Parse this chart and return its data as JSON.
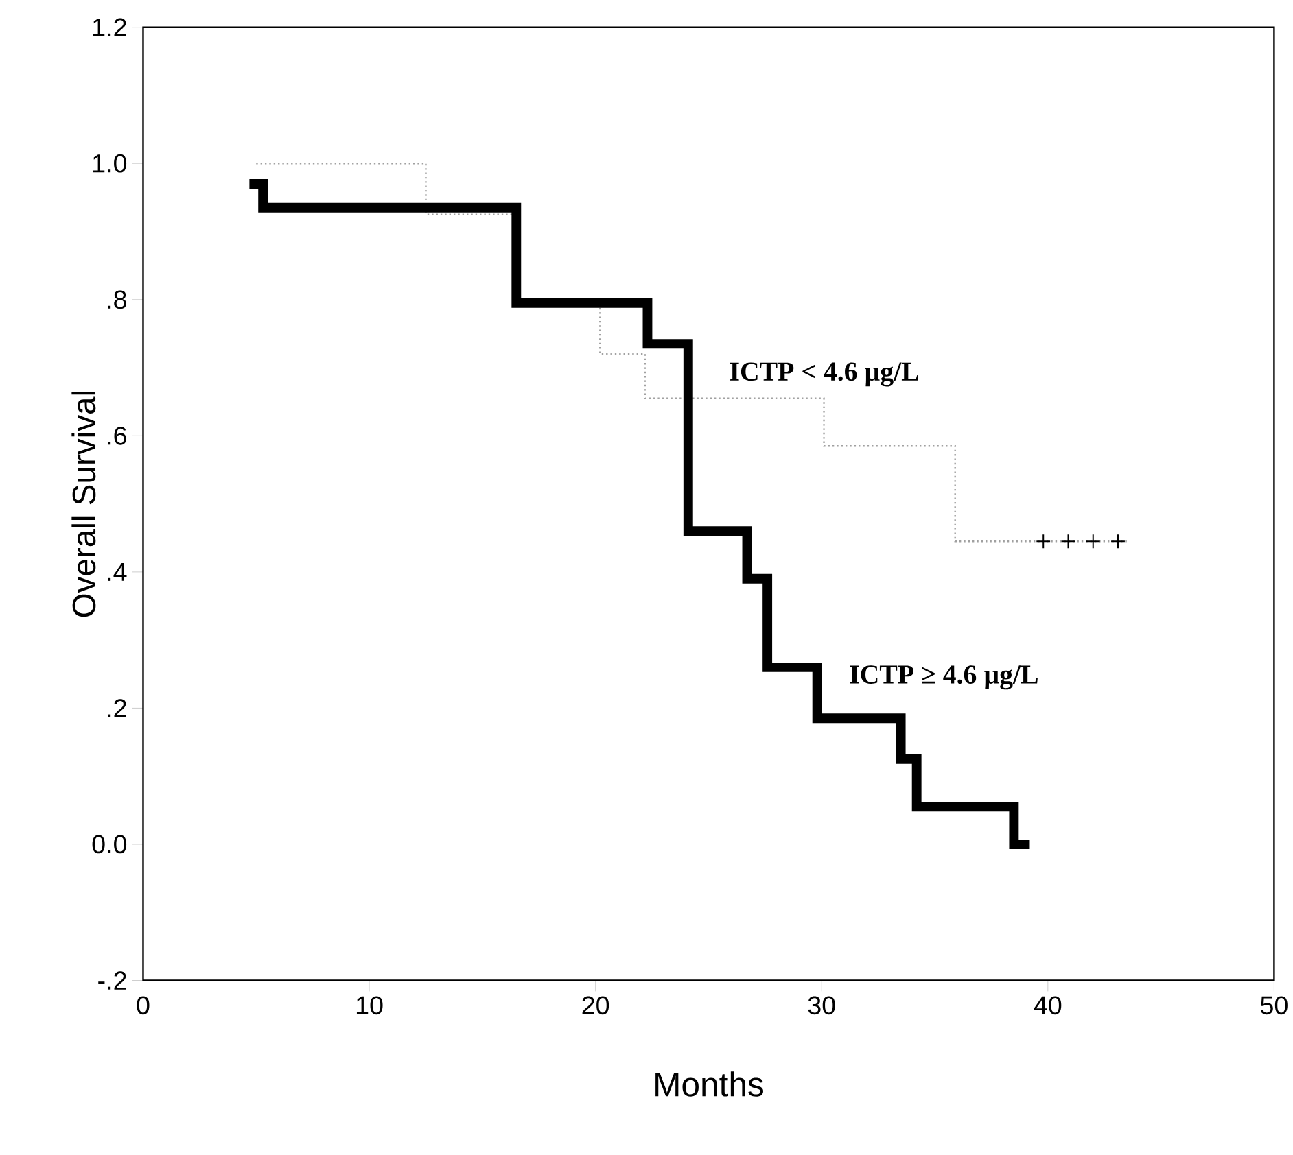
{
  "chart_data": {
    "type": "step",
    "xlabel": "Months",
    "ylabel": "Overall Survival",
    "xlim": [
      0,
      50
    ],
    "ylim": [
      -0.2,
      1.2
    ],
    "xticks": [
      0,
      10,
      20,
      30,
      40,
      50
    ],
    "yticks": [
      {
        "value": -0.2,
        "label": "-.2"
      },
      {
        "value": 0,
        "label": "0.0"
      },
      {
        "value": 0.2,
        "label": ".2"
      },
      {
        "value": 0.4,
        "label": ".4"
      },
      {
        "value": 0.6,
        "label": ".6"
      },
      {
        "value": 0.8,
        "label": ".8"
      },
      {
        "value": 1.0,
        "label": "1.0"
      },
      {
        "value": 1.2,
        "label": "1.2"
      }
    ],
    "grid": false,
    "legend": false,
    "series": [
      {
        "name": "ICTP   < 4.6 µg/L",
        "color": "#a0a0a0",
        "line_style": "dotted",
        "x": [
          5,
          12.5,
          16.4,
          20.2,
          22.2,
          30.1,
          35.9,
          43.5
        ],
        "values": [
          1.0,
          0.925,
          0.795,
          0.72,
          0.655,
          0.585,
          0.445,
          0.445
        ]
      },
      {
        "name": "ICTP   ≥ 4.6 µg/L",
        "color": "#000000",
        "line_style": "solid",
        "x": [
          4.7,
          5.3,
          16.5,
          22.3,
          24.1,
          26.7,
          27.6,
          29.8,
          33.5,
          34.2,
          38.5,
          39.2
        ],
        "values": [
          0.97,
          0.935,
          0.795,
          0.735,
          0.46,
          0.39,
          0.26,
          0.185,
          0.125,
          0.055,
          0.0,
          0.0
        ]
      },
      {
        "type": "scatter",
        "marker": "cross",
        "color": "#000000",
        "x": [
          39.8,
          40.9,
          42.0,
          43.1
        ],
        "values": [
          0.445,
          0.445,
          0.445,
          0.445
        ]
      }
    ]
  }
}
